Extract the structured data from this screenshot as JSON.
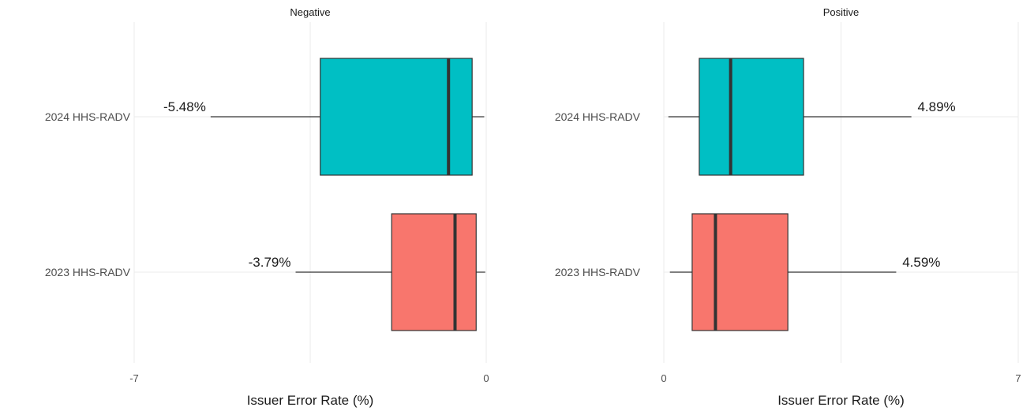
{
  "chart_data": [
    {
      "type": "boxplot",
      "title": "Negative",
      "xlabel": "Issuer Error Rate (%)",
      "xlim": [
        -7,
        0
      ],
      "xticks": [
        -7,
        0
      ],
      "grid": true,
      "categories": [
        "2024 HHS-RADV",
        "2023 HHS-RADV"
      ],
      "boxes": [
        {
          "category": "2024 HHS-RADV",
          "whisker_low": -5.48,
          "q1": -3.3,
          "median": -0.75,
          "q3": -0.28,
          "whisker_high": -0.04,
          "color": "#00BFC4",
          "label": "-5.48%"
        },
        {
          "category": "2023 HHS-RADV",
          "whisker_low": -3.79,
          "q1": -1.88,
          "median": -0.62,
          "q3": -0.2,
          "whisker_high": -0.02,
          "color": "#F8766D",
          "label": "-3.79%"
        }
      ]
    },
    {
      "type": "boxplot",
      "title": "Positive",
      "xlabel": "Issuer Error Rate (%)",
      "xlim": [
        0,
        7
      ],
      "xticks": [
        0,
        7
      ],
      "grid": true,
      "categories": [
        "2024 HHS-RADV",
        "2023 HHS-RADV"
      ],
      "boxes": [
        {
          "category": "2024 HHS-RADV",
          "whisker_low": 0.09,
          "q1": 0.7,
          "median": 1.32,
          "q3": 2.76,
          "whisker_high": 4.89,
          "color": "#00BFC4",
          "label": "4.89%"
        },
        {
          "category": "2023 HHS-RADV",
          "whisker_low": 0.12,
          "q1": 0.56,
          "median": 1.02,
          "q3": 2.45,
          "whisker_high": 4.59,
          "color": "#F8766D",
          "label": "4.59%"
        }
      ]
    }
  ]
}
